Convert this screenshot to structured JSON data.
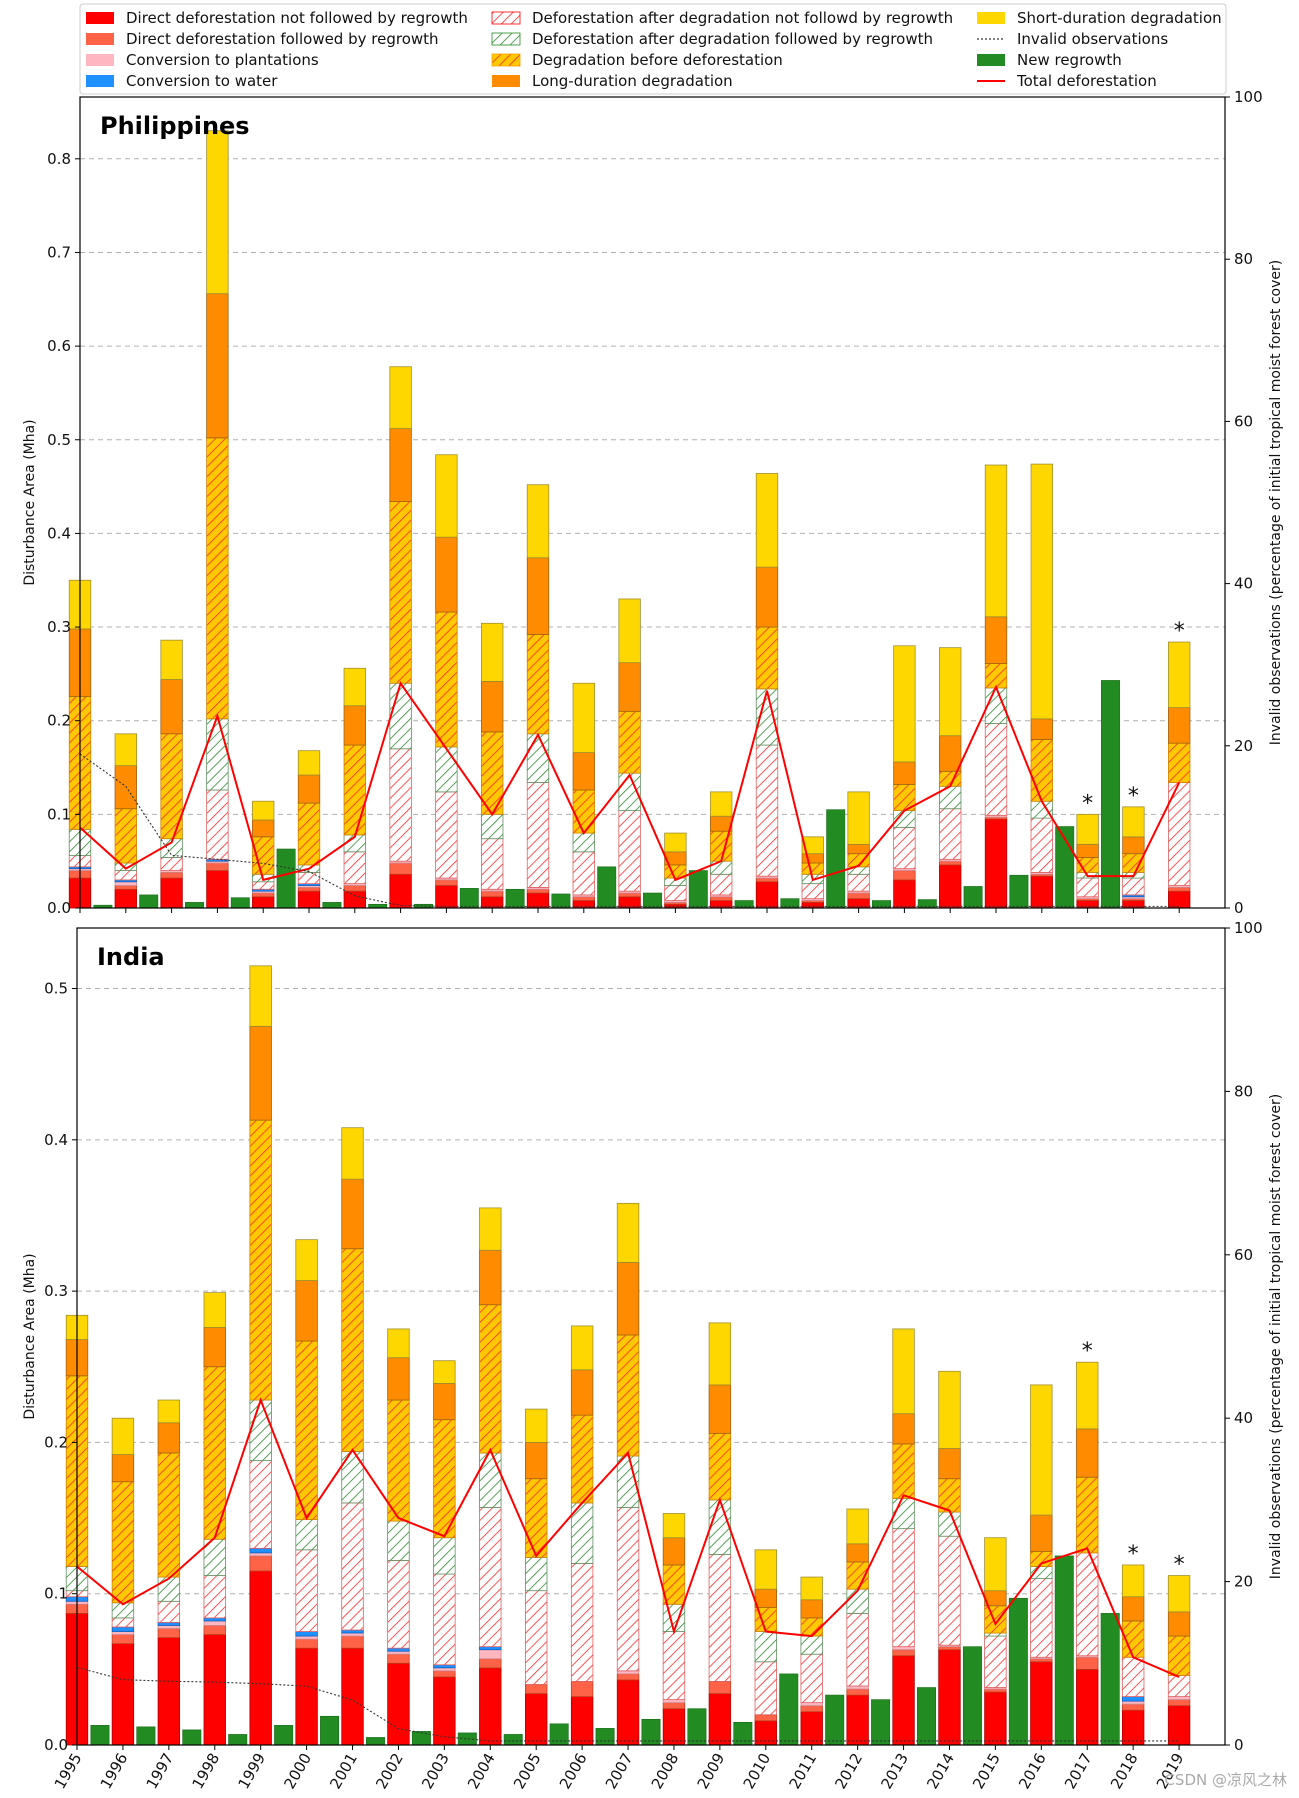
{
  "legend": {
    "entries": [
      {
        "key": "direct_no_regrowth",
        "label": "Direct deforestation not followed by regrowth",
        "kind": "solid",
        "color": "#ff0000"
      },
      {
        "key": "direct_regrowth",
        "label": "Direct deforestation followed by regrowth",
        "kind": "solid",
        "color": "#ff6347"
      },
      {
        "key": "plantations",
        "label": "Conversion to plantations",
        "kind": "solid",
        "color": "#ffb6c1"
      },
      {
        "key": "water",
        "label": "Conversion to water",
        "kind": "solid",
        "color": "#1e90ff"
      },
      {
        "key": "degr_defor_no_regrowth",
        "label": "Deforestation after degradation not followd by regrowth",
        "kind": "hatch-red",
        "color": "#ff0000"
      },
      {
        "key": "degr_defor_regrowth",
        "label": "Deforestation after degradation followed by regrowth",
        "kind": "hatch-green",
        "color": "#228b22"
      },
      {
        "key": "degr_before_defor",
        "label": "Degradation before deforestation",
        "kind": "hatch-yellow",
        "color": "#ffa500"
      },
      {
        "key": "long_degr",
        "label": "Long-duration degradation",
        "kind": "solid",
        "color": "#ff8c00"
      },
      {
        "key": "short_degr",
        "label": "Short-duration degradation",
        "kind": "solid",
        "color": "#ffd700"
      },
      {
        "key": "invalid",
        "label": "Invalid observations",
        "kind": "dotted",
        "color": "#333333"
      },
      {
        "key": "new_regrowth",
        "label": "New regrowth",
        "kind": "solid",
        "color": "#228b22"
      },
      {
        "key": "total",
        "label": "Total deforestation",
        "kind": "line",
        "color": "#ff0000"
      }
    ]
  },
  "watermark": "CSDN @凉风之林",
  "chart_data": [
    {
      "type": "bar",
      "title": "Philippines",
      "ylabel": "Disturbance Area (Mha)",
      "ylabel_right": "Invalid observations (percentage of initial tropical moist forest cover)",
      "ylim": [
        0,
        0.866
      ],
      "y_ticks": [
        0.0,
        0.1,
        0.2,
        0.3,
        0.4,
        0.5,
        0.6,
        0.7,
        0.8
      ],
      "y_tick_labels": [
        "0.0",
        "0.1",
        "0.2",
        "0.3",
        "0.4",
        "0.5",
        "0.6",
        "0.7",
        "0.8"
      ],
      "ylim_right": [
        0,
        100
      ],
      "y2_ticks": [
        0,
        20,
        40,
        60,
        80,
        100
      ],
      "y2_tick_labels": [
        "0",
        "20",
        "40",
        "60",
        "80",
        "100"
      ],
      "grid": true,
      "categories": [
        "1995",
        "1996",
        "1997",
        "1998",
        "1999",
        "2000",
        "2001",
        "2002",
        "2003",
        "2004",
        "2005",
        "2006",
        "2007",
        "2008",
        "2009",
        "2010",
        "2011",
        "2012",
        "2013",
        "2014",
        "2015",
        "2016",
        "2017",
        "2018",
        "2019"
      ],
      "series": [
        {
          "name": "Direct deforestation not followed by regrowth",
          "values": [
            0.032,
            0.02,
            0.032,
            0.04,
            0.012,
            0.018,
            0.018,
            0.036,
            0.024,
            0.012,
            0.016,
            0.008,
            0.012,
            0.004,
            0.008,
            0.028,
            0.006,
            0.01,
            0.03,
            0.046,
            0.095,
            0.034,
            0.008,
            0.008,
            0.018
          ]
        },
        {
          "name": "Direct deforestation followed by regrowth",
          "values": [
            0.008,
            0.004,
            0.006,
            0.008,
            0.004,
            0.004,
            0.006,
            0.012,
            0.006,
            0.006,
            0.004,
            0.004,
            0.004,
            0.002,
            0.004,
            0.004,
            0.002,
            0.006,
            0.01,
            0.004,
            0.002,
            0.002,
            0.002,
            0.002,
            0.004
          ]
        },
        {
          "name": "Conversion to plantations",
          "values": [
            0.002,
            0.004,
            0.002,
            0.002,
            0.002,
            0.002,
            0.002,
            0.002,
            0.002,
            0.002,
            0.002,
            0.002,
            0.002,
            0.002,
            0.002,
            0.002,
            0.002,
            0.002,
            0.002,
            0.002,
            0.002,
            0.002,
            0.002,
            0.002,
            0.002
          ]
        },
        {
          "name": "Conversion to water",
          "values": [
            0.002,
            0.002,
            0.0,
            0.002,
            0.002,
            0.002,
            0.0,
            0.0,
            0.0,
            0.0,
            0.0,
            0.0,
            0.0,
            0.0,
            0.0,
            0.0,
            0.0,
            0.0,
            0.0,
            0.0,
            0.0,
            0.0,
            0.0,
            0.002,
            0.0
          ]
        },
        {
          "name": "Deforestation after degradation not followd by regrowth",
          "values": [
            0.012,
            0.01,
            0.014,
            0.074,
            0.008,
            0.012,
            0.034,
            0.12,
            0.092,
            0.054,
            0.112,
            0.046,
            0.086,
            0.016,
            0.022,
            0.14,
            0.016,
            0.018,
            0.044,
            0.054,
            0.098,
            0.058,
            0.02,
            0.018,
            0.11
          ]
        },
        {
          "name": "Deforestation after degradation followed by regrowth",
          "values": [
            0.028,
            0.008,
            0.02,
            0.076,
            0.008,
            0.008,
            0.018,
            0.07,
            0.048,
            0.026,
            0.052,
            0.02,
            0.04,
            0.008,
            0.014,
            0.06,
            0.01,
            0.008,
            0.018,
            0.024,
            0.038,
            0.018,
            0.006,
            0.006,
            0.0
          ]
        },
        {
          "name": "Degradation before deforestation",
          "values": [
            0.142,
            0.058,
            0.112,
            0.3,
            0.04,
            0.066,
            0.096,
            0.194,
            0.144,
            0.088,
            0.106,
            0.046,
            0.066,
            0.014,
            0.032,
            0.066,
            0.012,
            0.014,
            0.028,
            0.016,
            0.026,
            0.066,
            0.016,
            0.02,
            0.042
          ]
        },
        {
          "name": "Long-duration degradation",
          "values": [
            0.072,
            0.046,
            0.058,
            0.154,
            0.018,
            0.03,
            0.042,
            0.078,
            0.08,
            0.054,
            0.082,
            0.04,
            0.052,
            0.014,
            0.016,
            0.064,
            0.01,
            0.01,
            0.024,
            0.038,
            0.05,
            0.022,
            0.014,
            0.018,
            0.038
          ]
        },
        {
          "name": "Short-duration degradation",
          "values": [
            0.052,
            0.034,
            0.042,
            0.174,
            0.02,
            0.026,
            0.04,
            0.066,
            0.088,
            0.062,
            0.078,
            0.074,
            0.068,
            0.02,
            0.026,
            0.1,
            0.018,
            0.056,
            0.124,
            0.094,
            0.162,
            0.272,
            0.032,
            0.032,
            0.07
          ]
        },
        {
          "name": "New regrowth",
          "values": [
            0.003,
            0.014,
            0.006,
            0.011,
            0.063,
            0.006,
            0.004,
            0.004,
            0.021,
            0.02,
            0.015,
            0.044,
            0.016,
            0.04,
            0.008,
            0.01,
            0.105,
            0.008,
            0.009,
            0.023,
            0.035,
            0.087,
            0.243,
            null,
            null
          ]
        },
        {
          "name": "Total deforestation",
          "values": [
            0.086,
            0.042,
            0.07,
            0.205,
            0.03,
            0.042,
            0.076,
            0.24,
            0.17,
            0.1,
            0.185,
            0.08,
            0.142,
            0.03,
            0.05,
            0.232,
            0.03,
            0.045,
            0.104,
            0.13,
            0.236,
            0.114,
            0.034,
            0.034,
            0.134
          ]
        },
        {
          "name": "Invalid observations",
          "values": [
            19.0,
            15.0,
            6.5,
            6.0,
            5.5,
            4.5,
            1.5,
            0.3,
            0.2,
            0.2,
            0.2,
            0.2,
            0.2,
            0.2,
            0.2,
            0.2,
            0.2,
            0.2,
            0.2,
            0.2,
            0.2,
            0.2,
            0.2,
            0.2,
            0.2
          ]
        }
      ],
      "asterisks": [
        "2017",
        "2018",
        "2019"
      ],
      "asterisk_label": "*"
    },
    {
      "type": "bar",
      "title": "India",
      "ylabel": "Disturbance Area (Mha)",
      "ylabel_right": "Invalid observations (percentage of initial tropical moist forest cover)",
      "ylim": [
        0,
        0.54
      ],
      "y_ticks": [
        0.0,
        0.1,
        0.2,
        0.3,
        0.4,
        0.5
      ],
      "y_tick_labels": [
        "0.0",
        "0.1",
        "0.2",
        "0.3",
        "0.4",
        "0.5"
      ],
      "ylim_right": [
        0,
        100
      ],
      "y2_ticks": [
        0,
        20,
        40,
        60,
        80,
        100
      ],
      "y2_tick_labels": [
        "0",
        "20",
        "40",
        "60",
        "80",
        "100"
      ],
      "grid": true,
      "xlabel": "",
      "categories": [
        "1995",
        "1996",
        "1997",
        "1998",
        "1999",
        "2000",
        "2001",
        "2002",
        "2003",
        "2004",
        "2005",
        "2006",
        "2007",
        "2008",
        "2009",
        "2010",
        "2011",
        "2012",
        "2013",
        "2014",
        "2015",
        "2016",
        "2017",
        "2018",
        "2019"
      ],
      "series": [
        {
          "name": "Direct deforestation not followed by regrowth",
          "values": [
            0.087,
            0.067,
            0.071,
            0.073,
            0.115,
            0.064,
            0.064,
            0.054,
            0.045,
            0.051,
            0.034,
            0.032,
            0.043,
            0.024,
            0.034,
            0.016,
            0.022,
            0.033,
            0.059,
            0.063,
            0.035,
            0.055,
            0.05,
            0.023,
            0.026
          ]
        },
        {
          "name": "Direct deforestation followed by regrowth",
          "values": [
            0.006,
            0.006,
            0.006,
            0.006,
            0.01,
            0.006,
            0.008,
            0.006,
            0.004,
            0.006,
            0.006,
            0.01,
            0.004,
            0.004,
            0.008,
            0.004,
            0.004,
            0.004,
            0.004,
            0.002,
            0.002,
            0.002,
            0.008,
            0.004,
            0.004
          ]
        },
        {
          "name": "Conversion to plantations",
          "values": [
            0.002,
            0.002,
            0.002,
            0.003,
            0.002,
            0.002,
            0.002,
            0.002,
            0.002,
            0.006,
            0.0,
            0.0,
            0.002,
            0.002,
            0.0,
            0.0,
            0.002,
            0.002,
            0.002,
            0.001,
            0.001,
            0.001,
            0.001,
            0.002,
            0.002
          ]
        },
        {
          "name": "Conversion to water",
          "values": [
            0.003,
            0.003,
            0.002,
            0.002,
            0.003,
            0.003,
            0.002,
            0.002,
            0.002,
            0.002,
            0.0,
            0.0,
            0.0,
            0.0,
            0.0,
            0.0,
            0.0,
            0.0,
            0.0,
            0.0,
            0.0,
            0.0,
            0.0,
            0.003,
            0.0
          ]
        },
        {
          "name": "Deforestation after degradation not followd by regrowth",
          "values": [
            0.004,
            0.006,
            0.014,
            0.028,
            0.058,
            0.054,
            0.084,
            0.058,
            0.06,
            0.092,
            0.062,
            0.078,
            0.108,
            0.045,
            0.084,
            0.035,
            0.032,
            0.048,
            0.078,
            0.072,
            0.034,
            0.052,
            0.068,
            0.026,
            0.014
          ]
        },
        {
          "name": "Deforestation after degradation followed by regrowth",
          "values": [
            0.016,
            0.01,
            0.016,
            0.024,
            0.04,
            0.02,
            0.034,
            0.026,
            0.024,
            0.036,
            0.022,
            0.04,
            0.034,
            0.018,
            0.036,
            0.02,
            0.012,
            0.016,
            0.02,
            0.016,
            0.002,
            0.008,
            0.0,
            0.0,
            0.0
          ]
        },
        {
          "name": "Degradation before deforestation",
          "values": [
            0.126,
            0.08,
            0.082,
            0.114,
            0.185,
            0.118,
            0.134,
            0.08,
            0.078,
            0.098,
            0.052,
            0.058,
            0.08,
            0.026,
            0.044,
            0.016,
            0.012,
            0.018,
            0.036,
            0.022,
            0.018,
            0.01,
            0.05,
            0.024,
            0.026
          ]
        },
        {
          "name": "Long-duration degradation",
          "values": [
            0.024,
            0.018,
            0.02,
            0.026,
            0.062,
            0.04,
            0.046,
            0.028,
            0.024,
            0.036,
            0.024,
            0.03,
            0.048,
            0.018,
            0.032,
            0.012,
            0.012,
            0.012,
            0.02,
            0.02,
            0.01,
            0.024,
            0.032,
            0.016,
            0.016
          ]
        },
        {
          "name": "Short-duration degradation",
          "values": [
            0.016,
            0.024,
            0.015,
            0.023,
            0.04,
            0.027,
            0.034,
            0.019,
            0.015,
            0.028,
            0.022,
            0.029,
            0.039,
            0.016,
            0.041,
            0.026,
            0.015,
            0.023,
            0.056,
            0.051,
            0.035,
            0.086,
            0.044,
            0.021,
            0.024
          ]
        },
        {
          "name": "New regrowth",
          "values": [
            0.013,
            0.012,
            0.01,
            0.007,
            0.013,
            0.019,
            0.005,
            0.009,
            0.008,
            0.007,
            0.014,
            0.011,
            0.017,
            0.024,
            0.015,
            0.047,
            0.033,
            0.03,
            0.038,
            0.065,
            0.097,
            0.125,
            0.087,
            null,
            null
          ]
        },
        {
          "name": "Total deforestation",
          "values": [
            0.118,
            0.093,
            0.11,
            0.137,
            0.228,
            0.15,
            0.195,
            0.15,
            0.138,
            0.195,
            0.125,
            0.16,
            0.193,
            0.075,
            0.162,
            0.075,
            0.072,
            0.102,
            0.165,
            0.155,
            0.08,
            0.12,
            0.13,
            0.058,
            0.045
          ]
        },
        {
          "name": "Invalid observations",
          "values": [
            9.5,
            8.0,
            7.8,
            7.7,
            7.5,
            7.2,
            5.5,
            2.0,
            1.0,
            0.5,
            0.5,
            0.5,
            0.5,
            0.5,
            0.5,
            0.5,
            0.5,
            0.5,
            0.5,
            0.5,
            0.5,
            0.5,
            0.5,
            0.5,
            0.5
          ]
        }
      ],
      "asterisks": [
        "2017",
        "2018",
        "2019"
      ],
      "asterisk_label": "*"
    }
  ]
}
